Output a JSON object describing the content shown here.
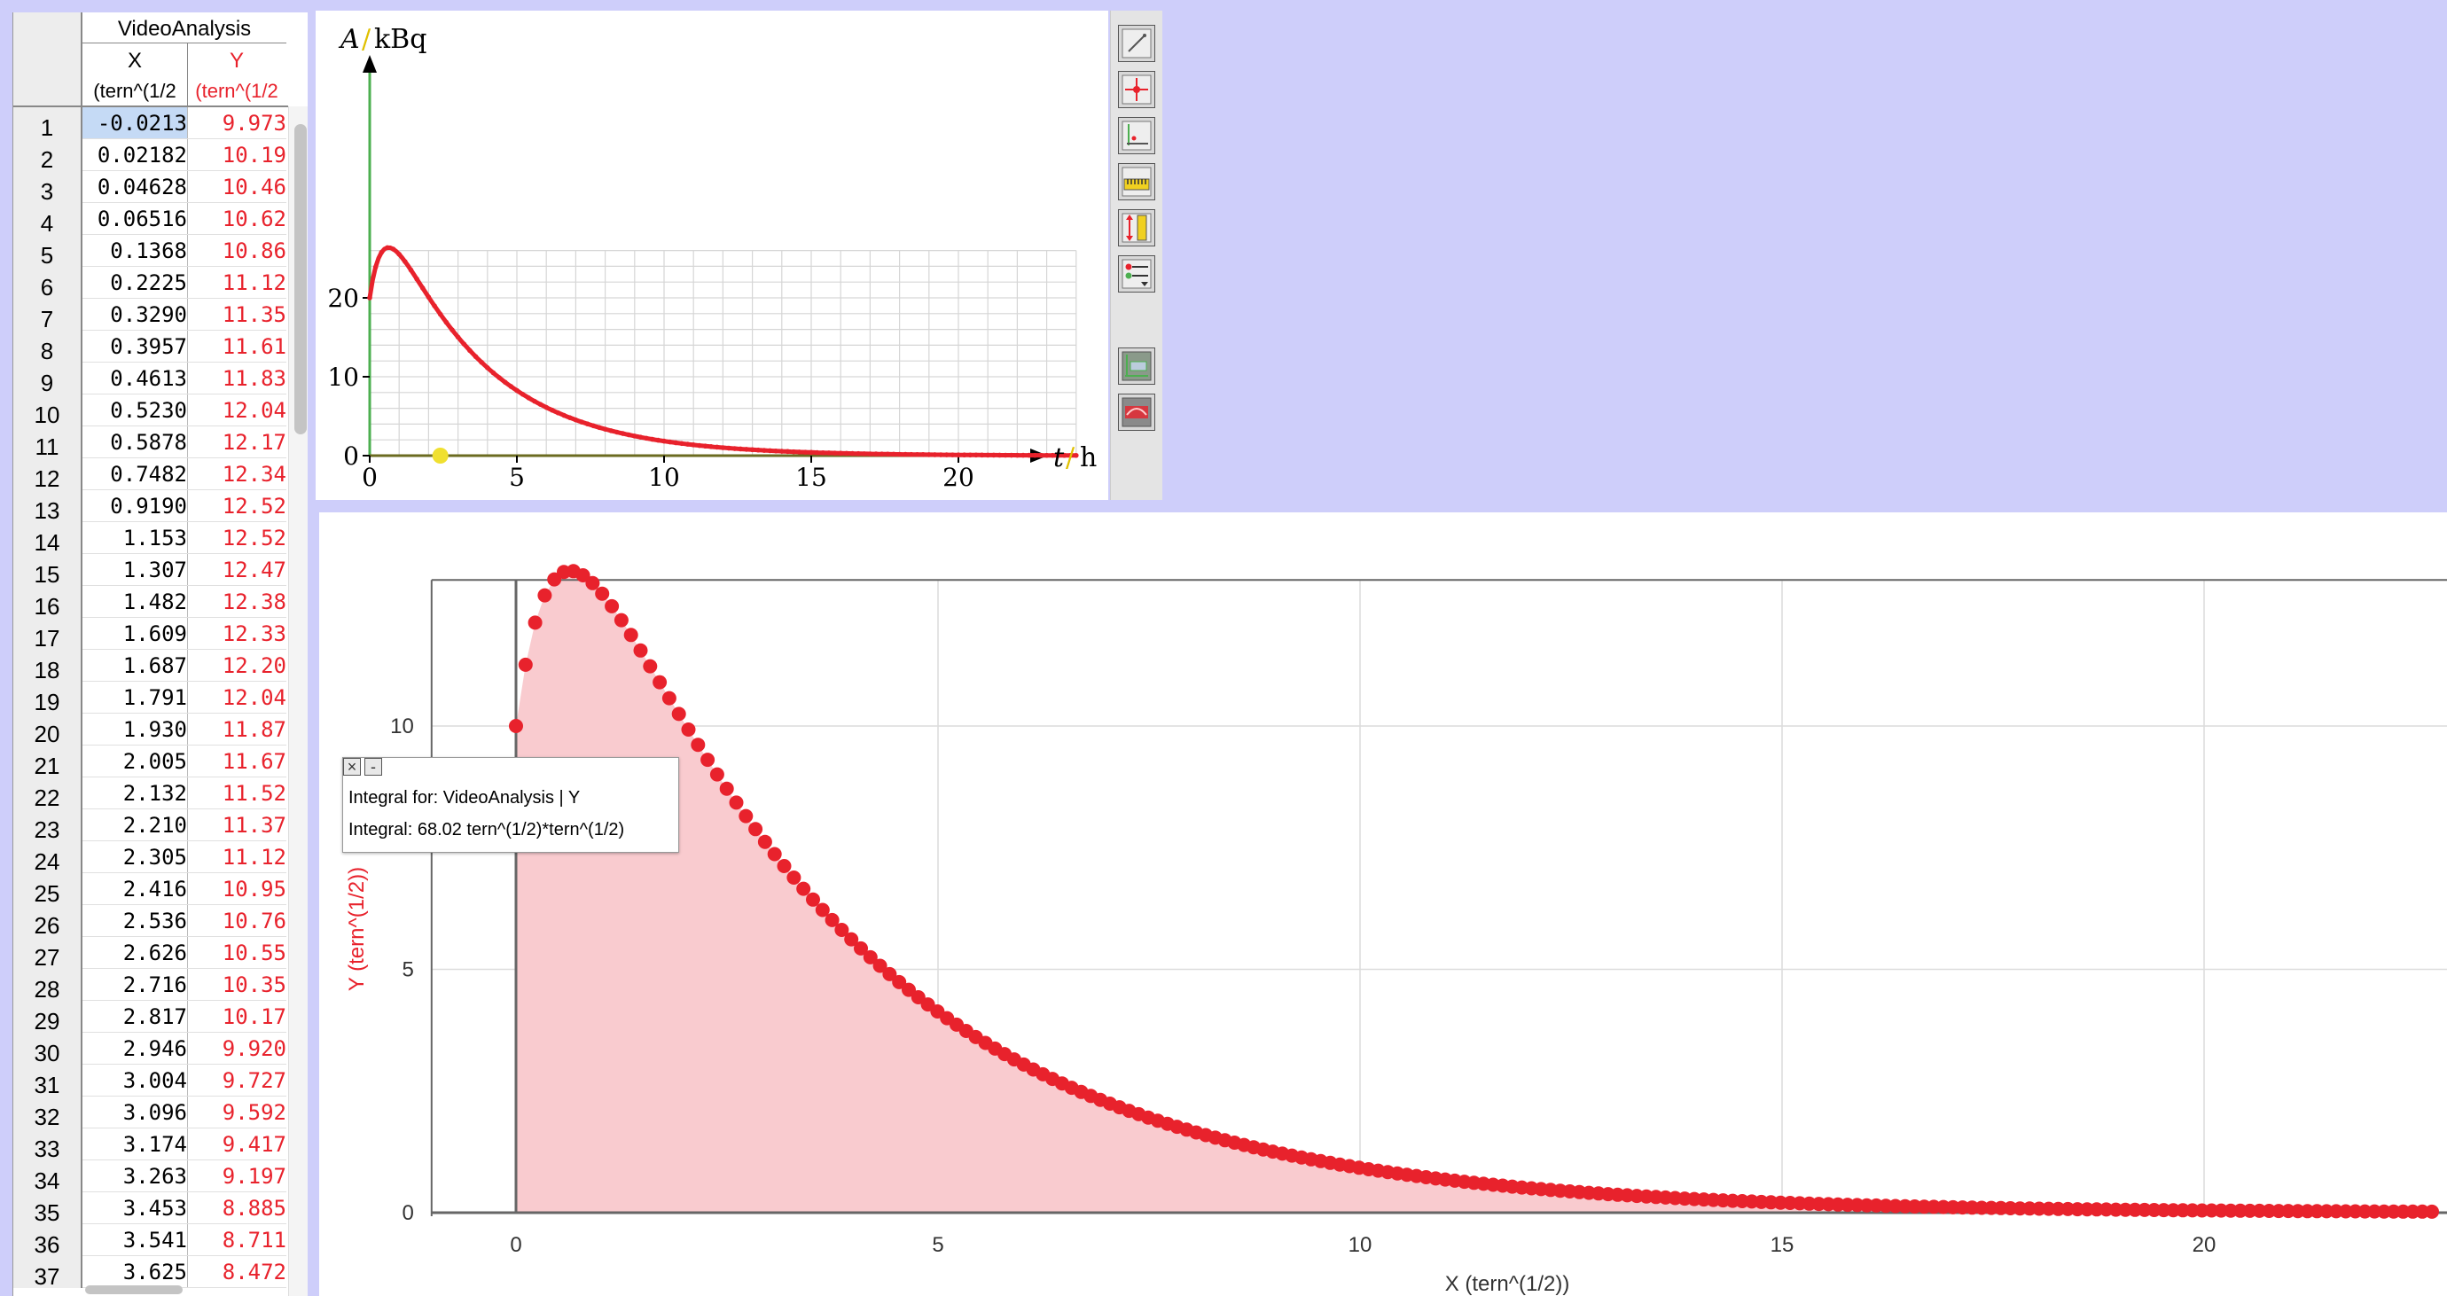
{
  "table": {
    "title": "VideoAnalysis",
    "col_x": "X",
    "col_y": "Y",
    "unit_x": "(tern^(1/2",
    "unit_y": "(tern^(1/2",
    "rows": [
      [
        "1",
        "-0.0213",
        "9.973"
      ],
      [
        "2",
        "0.02182",
        "10.19"
      ],
      [
        "3",
        "0.04628",
        "10.46"
      ],
      [
        "4",
        "0.06516",
        "10.62"
      ],
      [
        "5",
        "0.1368",
        "10.86"
      ],
      [
        "6",
        "0.2225",
        "11.12"
      ],
      [
        "7",
        "0.3290",
        "11.35"
      ],
      [
        "8",
        "0.3957",
        "11.61"
      ],
      [
        "9",
        "0.4613",
        "11.83"
      ],
      [
        "10",
        "0.5230",
        "12.04"
      ],
      [
        "11",
        "0.5878",
        "12.17"
      ],
      [
        "12",
        "0.7482",
        "12.34"
      ],
      [
        "13",
        "0.9190",
        "12.52"
      ],
      [
        "14",
        "1.153",
        "12.52"
      ],
      [
        "15",
        "1.307",
        "12.47"
      ],
      [
        "16",
        "1.482",
        "12.38"
      ],
      [
        "17",
        "1.609",
        "12.33"
      ],
      [
        "18",
        "1.687",
        "12.20"
      ],
      [
        "19",
        "1.791",
        "12.04"
      ],
      [
        "20",
        "1.930",
        "11.87"
      ],
      [
        "21",
        "2.005",
        "11.67"
      ],
      [
        "22",
        "2.132",
        "11.52"
      ],
      [
        "23",
        "2.210",
        "11.37"
      ],
      [
        "24",
        "2.305",
        "11.12"
      ],
      [
        "25",
        "2.416",
        "10.95"
      ],
      [
        "26",
        "2.536",
        "10.76"
      ],
      [
        "27",
        "2.626",
        "10.55"
      ],
      [
        "28",
        "2.716",
        "10.35"
      ],
      [
        "29",
        "2.817",
        "10.17"
      ],
      [
        "30",
        "2.946",
        "9.920"
      ],
      [
        "31",
        "3.004",
        "9.727"
      ],
      [
        "32",
        "3.096",
        "9.592"
      ],
      [
        "33",
        "3.174",
        "9.417"
      ],
      [
        "34",
        "3.263",
        "9.197"
      ],
      [
        "35",
        "3.453",
        "8.885"
      ],
      [
        "36",
        "3.541",
        "8.711"
      ],
      [
        "37",
        "3.625",
        "8.472"
      ]
    ]
  },
  "toolbar": {
    "buttons": [
      "pen-icon",
      "crosshair-icon",
      "coordinate-icon",
      "ruler-icon",
      "vertical-ruler-icon",
      "series-list-icon",
      "fit-icon",
      "curve-icon"
    ]
  },
  "colors": {
    "background": "#cecefa",
    "series": "#e8222c",
    "fill": "#f9cbcf",
    "axis_green": "#4caf50",
    "marker_yellow": "#f0e030"
  },
  "popup": {
    "line1": "Integral for: VideoAnalysis | Y",
    "line2": "Integral: 68.02 tern^(1/2)*tern^(1/2)"
  },
  "chart_data": [
    {
      "type": "scatter",
      "title": "",
      "xlabel": "t / h",
      "ylabel": "A / kBq",
      "x_label_var": "t",
      "x_label_unit": "h",
      "y_label_var": "A",
      "y_label_unit": "kBq",
      "xlim": [
        0,
        24
      ],
      "ylim": [
        0,
        26
      ],
      "xticks": [
        0,
        5,
        10,
        15,
        20
      ],
      "yticks": [
        0,
        10,
        20
      ],
      "grid": true,
      "marker_x": 2.4,
      "series": [
        {
          "function": "A = 20*exp(-0.3*t) + 17*(exp(-0.3*t) - exp(-2.2*t))",
          "x_from": 0,
          "x_to": 24,
          "points": 240
        }
      ]
    },
    {
      "type": "area",
      "title": "",
      "xlabel": "X (tern^(1/2))",
      "ylabel": "Y (tern^(1/2))",
      "xlim": [
        -1,
        22.7
      ],
      "ylim": [
        -0.3,
        13
      ],
      "xticks": [
        0,
        5,
        10,
        15,
        20
      ],
      "yticks": [
        0,
        5,
        10
      ],
      "grid": true,
      "integral": 68.02,
      "series": [
        {
          "name": "Y",
          "function": "Y = 20*exp(-0.3*t) + 17*(exp(-0.3*t) - exp(-2.2*t)), scaled by 0.5",
          "x_from": 0,
          "x_to": 22.7,
          "points": 200
        }
      ]
    }
  ]
}
